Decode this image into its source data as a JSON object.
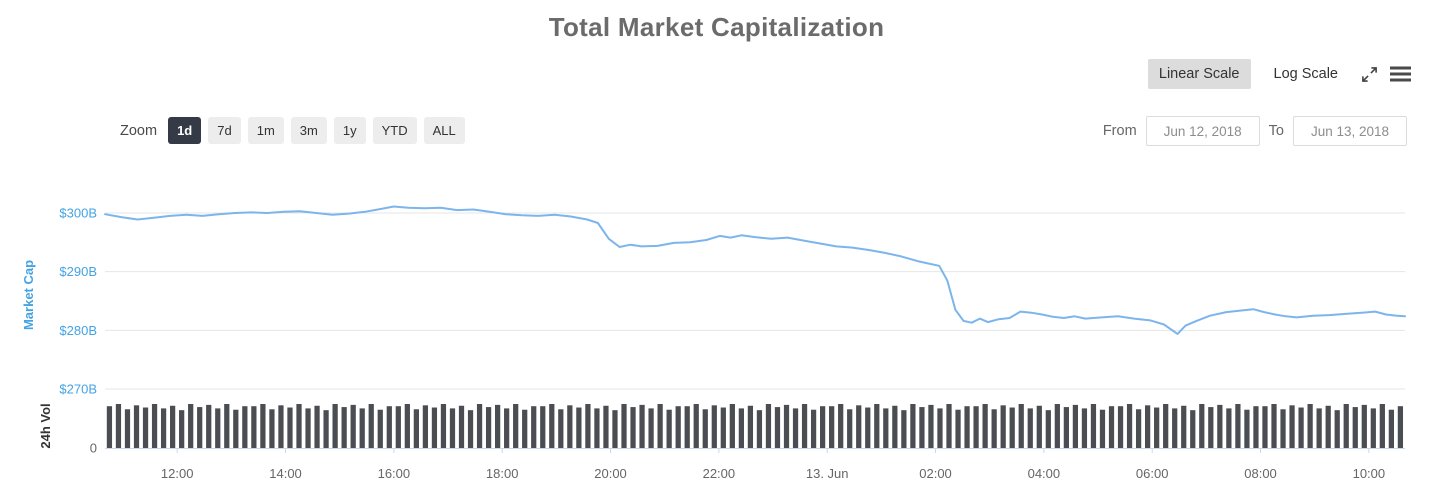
{
  "title": "Total Market Capitalization",
  "scale_toggle": {
    "linear": "Linear Scale",
    "log": "Log Scale"
  },
  "zoom": {
    "label": "Zoom",
    "buttons": [
      "1d",
      "7d",
      "1m",
      "3m",
      "1y",
      "YTD",
      "ALL"
    ],
    "selected": "1d"
  },
  "range": {
    "from_label": "From",
    "from": "Jun 12, 2018",
    "to_label": "To",
    "to": "Jun 13, 2018"
  },
  "chart_data": {
    "type": "line",
    "title": "Total Market Capitalization",
    "legend": "none",
    "grid": "horizontal",
    "y_axis": {
      "title": "Market Cap",
      "unit": "USD billions",
      "range": [
        268,
        302
      ],
      "ticks": [
        {
          "value": 300,
          "label": "$300B"
        },
        {
          "value": 290,
          "label": "$290B"
        },
        {
          "value": 280,
          "label": "$280B"
        },
        {
          "value": 270,
          "label": "$270B"
        }
      ]
    },
    "volume_axis": {
      "title": "24h Vol",
      "ticks": [
        {
          "value": 0,
          "label": "0"
        }
      ]
    },
    "x_axis": {
      "hours_span": 24,
      "start": "Jun 12, 2018 ~10:40",
      "end": "Jun 13, 2018 ~10:40",
      "ticks": [
        {
          "t": 1.333,
          "label": "12:00"
        },
        {
          "t": 3.333,
          "label": "14:00"
        },
        {
          "t": 5.333,
          "label": "16:00"
        },
        {
          "t": 7.333,
          "label": "18:00"
        },
        {
          "t": 9.333,
          "label": "20:00"
        },
        {
          "t": 11.333,
          "label": "22:00"
        },
        {
          "t": 13.333,
          "label": "13. Jun"
        },
        {
          "t": 15.333,
          "label": "02:00"
        },
        {
          "t": 17.333,
          "label": "04:00"
        },
        {
          "t": 19.333,
          "label": "06:00"
        },
        {
          "t": 21.333,
          "label": "08:00"
        },
        {
          "t": 23.333,
          "label": "10:00"
        }
      ]
    },
    "series": [
      {
        "name": "Market Cap",
        "unit": "$B",
        "color": "#7cb5ec",
        "points": [
          [
            0,
            299.8
          ],
          [
            0.3,
            299.3
          ],
          [
            0.6,
            298.9
          ],
          [
            0.9,
            299.2
          ],
          [
            1.2,
            299.5
          ],
          [
            1.5,
            299.7
          ],
          [
            1.8,
            299.5
          ],
          [
            2.1,
            299.8
          ],
          [
            2.4,
            300.0
          ],
          [
            2.7,
            300.1
          ],
          [
            3.0,
            300.0
          ],
          [
            3.3,
            300.2
          ],
          [
            3.6,
            300.3
          ],
          [
            3.9,
            300.0
          ],
          [
            4.2,
            299.7
          ],
          [
            4.5,
            299.9
          ],
          [
            4.8,
            300.2
          ],
          [
            5.1,
            300.7
          ],
          [
            5.33,
            301.1
          ],
          [
            5.6,
            300.9
          ],
          [
            5.9,
            300.8
          ],
          [
            6.2,
            300.9
          ],
          [
            6.5,
            300.5
          ],
          [
            6.8,
            300.6
          ],
          [
            7.1,
            300.2
          ],
          [
            7.4,
            299.8
          ],
          [
            7.7,
            299.6
          ],
          [
            8.0,
            299.5
          ],
          [
            8.3,
            299.7
          ],
          [
            8.6,
            299.4
          ],
          [
            8.9,
            298.9
          ],
          [
            9.1,
            298.3
          ],
          [
            9.3,
            295.6
          ],
          [
            9.5,
            294.2
          ],
          [
            9.7,
            294.6
          ],
          [
            9.9,
            294.3
          ],
          [
            10.2,
            294.4
          ],
          [
            10.5,
            294.9
          ],
          [
            10.8,
            295.0
          ],
          [
            11.1,
            295.4
          ],
          [
            11.35,
            296.1
          ],
          [
            11.55,
            295.8
          ],
          [
            11.75,
            296.2
          ],
          [
            12.0,
            295.9
          ],
          [
            12.3,
            295.6
          ],
          [
            12.6,
            295.8
          ],
          [
            12.9,
            295.3
          ],
          [
            13.2,
            294.8
          ],
          [
            13.5,
            294.3
          ],
          [
            13.8,
            294.1
          ],
          [
            14.1,
            293.7
          ],
          [
            14.4,
            293.2
          ],
          [
            14.7,
            292.6
          ],
          [
            15.0,
            291.8
          ],
          [
            15.2,
            291.4
          ],
          [
            15.4,
            291.0
          ],
          [
            15.55,
            288.5
          ],
          [
            15.7,
            283.5
          ],
          [
            15.85,
            281.6
          ],
          [
            16.0,
            281.3
          ],
          [
            16.15,
            282.0
          ],
          [
            16.3,
            281.4
          ],
          [
            16.5,
            281.9
          ],
          [
            16.7,
            282.1
          ],
          [
            16.9,
            283.2
          ],
          [
            17.1,
            283.0
          ],
          [
            17.3,
            282.7
          ],
          [
            17.5,
            282.3
          ],
          [
            17.7,
            282.1
          ],
          [
            17.9,
            282.4
          ],
          [
            18.1,
            282.0
          ],
          [
            18.4,
            282.2
          ],
          [
            18.7,
            282.4
          ],
          [
            19.0,
            282.0
          ],
          [
            19.3,
            281.7
          ],
          [
            19.55,
            281.0
          ],
          [
            19.8,
            279.4
          ],
          [
            19.95,
            280.8
          ],
          [
            20.15,
            281.6
          ],
          [
            20.4,
            282.5
          ],
          [
            20.7,
            283.1
          ],
          [
            21.0,
            283.4
          ],
          [
            21.2,
            283.6
          ],
          [
            21.4,
            283.1
          ],
          [
            21.6,
            282.7
          ],
          [
            21.8,
            282.4
          ],
          [
            22.0,
            282.2
          ],
          [
            22.3,
            282.5
          ],
          [
            22.6,
            282.6
          ],
          [
            22.9,
            282.8
          ],
          [
            23.2,
            283.0
          ],
          [
            23.45,
            283.2
          ],
          [
            23.65,
            282.7
          ],
          [
            23.85,
            282.5
          ],
          [
            24.0,
            282.4
          ]
        ]
      }
    ],
    "volume_bars": {
      "color": "#4a4d52",
      "count": 144,
      "heights_pattern": [
        0.95,
        1,
        0.88,
        0.97,
        0.92,
        1,
        0.9,
        0.96,
        0.86,
        1,
        0.93,
        0.98,
        0.9,
        1,
        0.87,
        0.95
      ]
    },
    "colors": {
      "grid": "#e6e6e6",
      "axis_line": "#ccd6eb",
      "axis_label_blue": "#44a3e3",
      "axis_text": "#666666",
      "line": "#7cb5ec"
    }
  }
}
